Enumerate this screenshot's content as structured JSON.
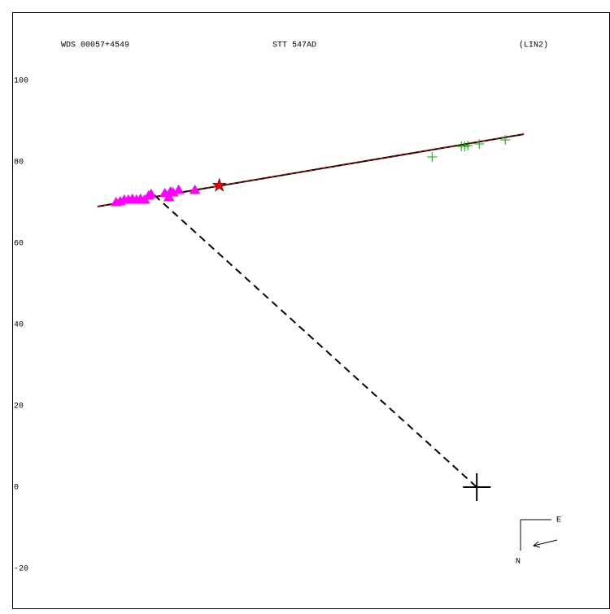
{
  "chart_data": {
    "type": "scatter",
    "texts": [
      "WDS 00057+4549",
      "STT 547AD",
      "(LIN2)"
    ],
    "compass": [
      "E",
      "N"
    ],
    "xlim": [
      -114.4,
      32.6
    ],
    "ylim": [
      -29.8,
      116.8
    ],
    "yticks": [
      -20,
      0,
      20,
      40,
      60,
      80,
      100
    ],
    "series": [
      {
        "marker": "line",
        "color": "#000000",
        "overlay_color": "#ff0000",
        "x": [
          -93.4,
          11.6
        ],
        "values": [
          69,
          86.8
        ]
      },
      {
        "marker": "dashed",
        "color": "#000000",
        "x": [
          -79.4,
          0
        ],
        "values": [
          71.8,
          0
        ]
      },
      {
        "marker": "triangle",
        "color": "#ff00ff",
        "x": [
          -88.8,
          -87.8,
          -86.8,
          -85.8,
          -84.8,
          -83.8,
          -82.8,
          -81.8,
          -80.8,
          -80.2,
          -76.8,
          -75.8,
          -75.4,
          -74.8,
          -73.4,
          -69.4
        ],
        "values": [
          70,
          70.2,
          70.6,
          70.6,
          70.8,
          70.6,
          70.8,
          70.6,
          71.6,
          72,
          72.2,
          71.2,
          72.6,
          72.4,
          73,
          73
        ]
      },
      {
        "marker": "star",
        "color": "#ff0000",
        "x": [
          -63.4
        ],
        "values": [
          74.2
        ]
      },
      {
        "marker": "plus",
        "color": "#00aa00",
        "x": [
          -11,
          -3.8,
          -3,
          -2.2,
          0.6,
          7
        ],
        "values": [
          81.2,
          83.8,
          83.8,
          84,
          84.4,
          85.4
        ]
      },
      {
        "marker": "cross",
        "color": "#000000",
        "x": [
          0
        ],
        "values": [
          0
        ]
      }
    ]
  }
}
